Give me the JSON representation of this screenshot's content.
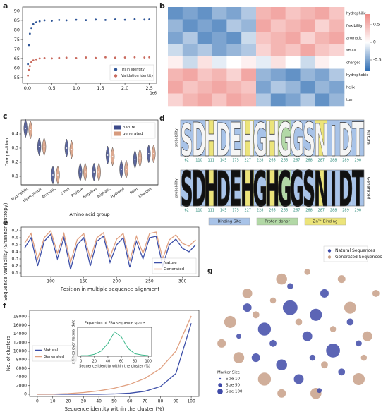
{
  "chart_data": [
    {
      "panel": "a",
      "type": "scatter",
      "x_offset_label": "1e6",
      "xlim": [
        -0.1,
        2.65
      ],
      "ylim": [
        52,
        92
      ],
      "xticks": [
        {
          "value": 0,
          "label": "0.0"
        },
        {
          "value": 0.5,
          "label": "0.5"
        },
        {
          "value": 1,
          "label": "1.0"
        },
        {
          "value": 1.5,
          "label": "1.5"
        },
        {
          "value": 2,
          "label": "2.0"
        },
        {
          "value": 2.5,
          "label": "2.5"
        }
      ],
      "yticks": [
        55,
        60,
        65,
        70,
        75,
        80,
        85,
        90
      ],
      "legend": "lower right",
      "series": [
        {
          "name": "Train identity",
          "color": "#2e5597",
          "x": [
            0.01,
            0.03,
            0.05,
            0.08,
            0.12,
            0.18,
            0.25,
            0.35,
            0.5,
            0.65,
            0.8,
            1.0,
            1.2,
            1.4,
            1.6,
            1.8,
            2.0,
            2.2,
            2.4,
            2.5
          ],
          "values": [
            62,
            72,
            78,
            81,
            83,
            84,
            84.5,
            85,
            84.8,
            85.2,
            85,
            85.3,
            85.1,
            85.4,
            85.2,
            85.5,
            85.3,
            85.6,
            85.4,
            85.5
          ]
        },
        {
          "name": "Validation identity",
          "color": "#c96a5e",
          "x": [
            0.01,
            0.03,
            0.05,
            0.08,
            0.12,
            0.18,
            0.25,
            0.35,
            0.5,
            0.65,
            0.8,
            1.0,
            1.2,
            1.4,
            1.6,
            1.8,
            2.0,
            2.2,
            2.4,
            2.5
          ],
          "values": [
            56,
            59,
            61,
            63,
            64,
            64.5,
            65,
            65.2,
            65,
            65.3,
            65.4,
            65.2,
            65.5,
            65.3,
            65.6,
            65.4,
            65.5,
            65.6,
            65.5,
            65.6
          ]
        }
      ]
    },
    {
      "panel": "b",
      "type": "heatmap",
      "row_labels": [
        "hydrophilic",
        "flexibility",
        "aromatic",
        "small",
        "charged",
        "hydrophobic",
        "helix",
        "turn"
      ],
      "matrix": [
        [
          -0.6,
          -0.5,
          -0.6,
          -0.4,
          -0.5,
          -0.3,
          0.5,
          0.6,
          0.4,
          0.5,
          0.6,
          0.4
        ],
        [
          -0.4,
          -0.6,
          -0.5,
          -0.6,
          -0.3,
          -0.4,
          0.6,
          0.4,
          0.5,
          0.6,
          0.3,
          0.5
        ],
        [
          -0.5,
          -0.3,
          -0.6,
          -0.5,
          -0.6,
          -0.2,
          0.4,
          0.5,
          0.6,
          0.3,
          0.5,
          0.6
        ],
        [
          -0.2,
          -0.4,
          -0.3,
          -0.5,
          -0.4,
          -0.3,
          0.3,
          0.5,
          0.4,
          0.6,
          0.4,
          0.3
        ],
        [
          0.1,
          -0.2,
          0.2,
          -0.1,
          0,
          0.1,
          -0.1,
          0.2,
          0,
          -0.2,
          0.1,
          0
        ],
        [
          0.5,
          0.6,
          0.4,
          0.5,
          0.3,
          0.6,
          -0.4,
          -0.5,
          -0.6,
          -0.4,
          -0.5,
          -0.3
        ],
        [
          0.6,
          0.4,
          0.5,
          0.6,
          0.5,
          0.4,
          -0.5,
          -0.3,
          -0.4,
          -0.6,
          -0.4,
          -0.5
        ],
        [
          0.3,
          0.5,
          0.6,
          0.4,
          0.6,
          0.5,
          -0.3,
          -0.6,
          -0.5,
          -0.3,
          -0.6,
          -0.4
        ]
      ],
      "clim": [
        -0.8,
        0.8
      ],
      "cticks": [
        0.5,
        0,
        -0.5
      ],
      "low_color": "#2f6db3",
      "mid_color": "#ffffff",
      "high_color": "#ee8a86"
    },
    {
      "panel": "c",
      "type": "violin",
      "xlabel": "Amino acid group",
      "ylabel": "Composition",
      "categories": [
        "Hydrophilic",
        "Hydrophobic",
        "Aromatic",
        "Small",
        "Positive",
        "Negative",
        "Aliphatic",
        "Hydroxyl",
        "Polar",
        "Charged"
      ],
      "ylim": [
        0.04,
        0.5
      ],
      "yticks": [
        0.1,
        0.2,
        0.3,
        0.4
      ],
      "legend": "upper right",
      "series": [
        {
          "name": "nature",
          "color": "#3d4a8a",
          "values": [
            0.44,
            0.31,
            0.11,
            0.3,
            0.13,
            0.13,
            0.25,
            0.15,
            0.22,
            0.26
          ]
        },
        {
          "name": "generated",
          "color": "#d79b7e",
          "values": [
            0.43,
            0.31,
            0.11,
            0.29,
            0.13,
            0.13,
            0.24,
            0.15,
            0.23,
            0.26
          ]
        }
      ]
    },
    {
      "panel": "d",
      "type": "logo",
      "ylabel": "probability",
      "letters": [
        "S",
        "D",
        "H",
        "D",
        "E",
        "H",
        "G",
        "H",
        "G",
        "G",
        "S",
        "N",
        "I",
        "D",
        "T"
      ],
      "categories": [
        "62",
        "110",
        "111",
        "145",
        "175",
        "227",
        "228",
        "265",
        "266",
        "267",
        "268",
        "287",
        "288",
        "289",
        "290"
      ],
      "colors": [
        "#a8c3e8",
        "#a8c3e8",
        "#ece47a",
        "#a8c3e8",
        "#a8c3e8",
        "#ece47a",
        "#a8c3e8",
        "#ece47a",
        "#b2d8a6",
        "#a8c3e8",
        "#a8c3e8",
        "#ece47a",
        "#a8c3e8",
        "#a8c3e8",
        "#a8c3e8"
      ],
      "series": [
        {
          "name": "Natural",
          "letter_color": "#f5f5f5",
          "values": [
            0.9,
            0.95,
            0.98,
            0.92,
            0.95,
            0.97,
            0.93,
            0.97,
            0.95,
            0.96,
            0.94,
            0.9,
            0.85,
            0.93,
            0.95
          ]
        },
        {
          "name": "Generated",
          "letter_color": "#111111",
          "values": [
            0.98,
            0.99,
            0.99,
            0.98,
            0.99,
            0.99,
            0.98,
            0.99,
            0.98,
            0.99,
            0.99,
            0.98,
            0.96,
            0.98,
            0.99
          ]
        }
      ],
      "legend_entries": [
        {
          "name": "Binding Site",
          "color": "#a8c3e8"
        },
        {
          "name": "Proton donor",
          "color": "#b2d8a6"
        },
        {
          "name": "Zn²⁺ Binding",
          "color": "#ece47a"
        }
      ]
    },
    {
      "panel": "e",
      "type": "line",
      "xlabel": "Position in multiple sequence alignment",
      "ylabel": "Sequence variability (Shannon entropy)",
      "x": [
        60,
        70,
        80,
        90,
        100,
        110,
        120,
        130,
        140,
        150,
        160,
        170,
        180,
        190,
        200,
        210,
        220,
        230,
        240,
        250,
        260,
        270,
        280,
        290,
        300,
        310,
        320
      ],
      "xlim": [
        55,
        325
      ],
      "ylim": [
        0.05,
        0.75
      ],
      "xticks": [
        100,
        150,
        200,
        250,
        300
      ],
      "yticks": [
        0.1,
        0.2,
        0.3,
        0.4,
        0.5,
        0.6,
        0.7
      ],
      "legend": "lower right",
      "series": [
        {
          "name": "Nature",
          "color": "#3d4fa8",
          "values": [
            0.45,
            0.6,
            0.2,
            0.55,
            0.65,
            0.3,
            0.6,
            0.15,
            0.5,
            0.6,
            0.2,
            0.55,
            0.62,
            0.25,
            0.5,
            0.6,
            0.18,
            0.55,
            0.3,
            0.6,
            0.62,
            0.2,
            0.5,
            0.58,
            0.45,
            0.4,
            0.5
          ]
        },
        {
          "name": "Generated",
          "color": "#e0a080",
          "values": [
            0.52,
            0.66,
            0.3,
            0.6,
            0.7,
            0.38,
            0.66,
            0.25,
            0.57,
            0.66,
            0.3,
            0.6,
            0.67,
            0.33,
            0.58,
            0.66,
            0.27,
            0.62,
            0.38,
            0.66,
            0.68,
            0.3,
            0.57,
            0.64,
            0.52,
            0.48,
            0.57
          ]
        }
      ]
    },
    {
      "panel": "f",
      "type": "line",
      "xlabel": "Sequence identity within the cluster (%)",
      "ylabel": "No. of clusters",
      "x": [
        0,
        10,
        20,
        30,
        40,
        50,
        60,
        70,
        80,
        90,
        100
      ],
      "xlim": [
        -5,
        105
      ],
      "ylim": [
        -500,
        19500
      ],
      "xticks": [
        0,
        10,
        20,
        30,
        40,
        50,
        60,
        70,
        80,
        90,
        100
      ],
      "yticks": [
        0,
        2000,
        4000,
        6000,
        8000,
        10000,
        12000,
        14000,
        16000,
        18000
      ],
      "legend": "center left",
      "series": [
        {
          "name": "Natural",
          "color": "#3d4fa8",
          "values": [
            0,
            0,
            0,
            0,
            0,
            80,
            250,
            700,
            1800,
            4800,
            16500
          ]
        },
        {
          "name": "Generated",
          "color": "#e0a080",
          "values": [
            0,
            20,
            150,
            400,
            800,
            1400,
            2300,
            3700,
            6000,
            10000,
            18200
          ]
        }
      ]
    },
    {
      "type": "line",
      "title": "Expansion of FBA sequence space",
      "xlabel": "Sequence identity within the cluster (%)",
      "ylabel": "x times over natural data",
      "x": [
        0,
        10,
        20,
        30,
        40,
        50,
        60,
        70,
        80,
        90,
        100
      ],
      "xlim": [
        -5,
        105
      ],
      "ylim": [
        0,
        45
      ],
      "xticks": [
        0,
        20,
        40,
        60,
        80,
        100
      ],
      "series": [
        {
          "color": "#3cb88a",
          "values": [
            1,
            1,
            3,
            8,
            20,
            38,
            30,
            12,
            4,
            2,
            1
          ]
        }
      ]
    },
    {
      "panel": "g",
      "type": "bubble",
      "xlim": [
        0,
        100
      ],
      "ylim": [
        0,
        115
      ],
      "legend": "upper right",
      "size_title": "Marker Size",
      "size_legend": [
        {
          "value": 10,
          "label": "Size 10"
        },
        {
          "value": 50,
          "label": "Size 50"
        },
        {
          "value": 100,
          "label": "Size 100"
        }
      ],
      "series": [
        {
          "name": "Natural Sequences",
          "color": "#3f4aa8",
          "x": [
            45,
            60,
            30,
            70,
            55,
            40,
            20,
            65,
            50,
            80,
            35,
            25,
            75,
            58,
            45,
            85,
            15,
            62
          ],
          "values": [
            70,
            65,
            55,
            40,
            50,
            30,
            70,
            80,
            20,
            60,
            45,
            35,
            25,
            35,
            85,
            45,
            50,
            12
          ],
          "sizes": [
            90,
            60,
            70,
            80,
            40,
            50,
            30,
            30,
            40,
            20,
            20,
            30,
            20,
            15,
            15,
            15,
            10,
            10
          ]
        },
        {
          "name": "Generated Sequences",
          "color": "#c8a088",
          "x": [
            10,
            20,
            40,
            30,
            60,
            80,
            90,
            85,
            15,
            50,
            70,
            25,
            95,
            5,
            40,
            75,
            55,
            35,
            65,
            88
          ],
          "values": [
            60,
            80,
            90,
            20,
            10,
            70,
            50,
            20,
            35,
            60,
            55,
            65,
            80,
            45,
            10,
            90,
            95,
            75,
            30,
            35
          ],
          "sizes": [
            60,
            40,
            50,
            70,
            50,
            60,
            40,
            60,
            50,
            20,
            15,
            20,
            20,
            30,
            30,
            25,
            15,
            15,
            20,
            15
          ]
        }
      ]
    }
  ]
}
